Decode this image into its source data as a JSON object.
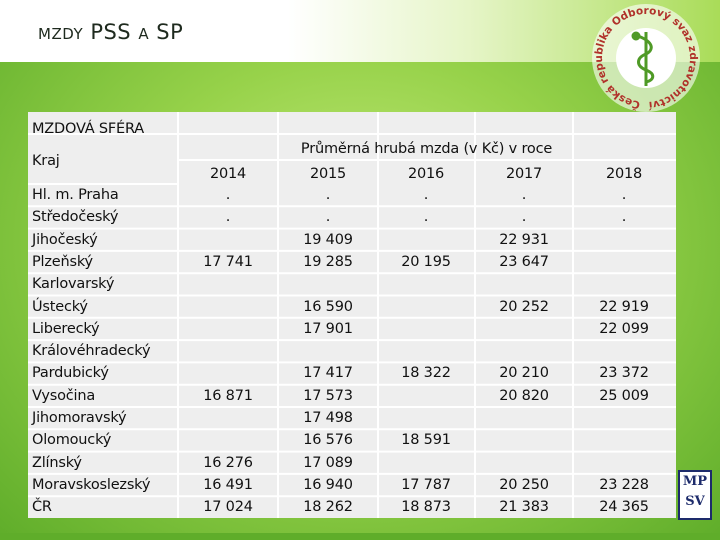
{
  "title": {
    "part1": "MZDY",
    "part2": "PSS",
    "part3": "A",
    "part4": "SP"
  },
  "logo": {
    "text": "Česká republika Odborový svaz zdravotnictví a sociální péče"
  },
  "mpsv": {
    "line1": "MP",
    "line2": "SV"
  },
  "table": {
    "section_label": "MZDOVÁ SFÉRA",
    "region_header": "Kraj",
    "group_header": "Průměrná hrubá mzda (v Kč) v roce",
    "years": [
      "2014",
      "2015",
      "2016",
      "2017",
      "2018"
    ],
    "rows": [
      {
        "region": "Hl. m. Praha",
        "values": [
          ".",
          ".",
          ".",
          ".",
          "."
        ]
      },
      {
        "region": "Středočeský",
        "values": [
          ".",
          ".",
          ".",
          ".",
          "."
        ]
      },
      {
        "region": "Jihočeský",
        "values": [
          "",
          "19 409",
          "",
          "22 931",
          ""
        ]
      },
      {
        "region": "Plzeňský",
        "values": [
          "17 741",
          "19 285",
          "20 195",
          "23 647",
          ""
        ]
      },
      {
        "region": "Karlovarský",
        "values": [
          "",
          "",
          "",
          "",
          ""
        ]
      },
      {
        "region": "Ústecký",
        "values": [
          "",
          "16 590",
          "",
          "20 252",
          "22 919"
        ]
      },
      {
        "region": "Liberecký",
        "values": [
          "",
          "17 901",
          "",
          "",
          "22 099"
        ]
      },
      {
        "region": "Královéhradecký",
        "values": [
          "",
          "",
          "",
          "",
          ""
        ]
      },
      {
        "region": "Pardubický",
        "values": [
          "",
          "17 417",
          "18 322",
          "20 210",
          "23 372"
        ]
      },
      {
        "region": "Vysočina",
        "values": [
          "16 871",
          "17 573",
          "",
          "20 820",
          "25 009"
        ]
      },
      {
        "region": "Jihomoravský",
        "values": [
          "",
          "17 498",
          "",
          "",
          ""
        ]
      },
      {
        "region": "Olomoucký",
        "values": [
          "",
          "16 576",
          "18 591",
          "",
          ""
        ]
      },
      {
        "region": "Zlínský",
        "values": [
          "16 276",
          "17 089",
          "",
          "",
          ""
        ]
      },
      {
        "region": "Moravskoslezský",
        "values": [
          "16 491",
          "16 940",
          "17 787",
          "20 250",
          "23 228"
        ]
      },
      {
        "region": "ČR",
        "values": [
          "17 024",
          "18 262",
          "18 873",
          "21 383",
          "24 365"
        ]
      }
    ]
  },
  "colors": {
    "green_dark": "#5fad2a",
    "green_light": "#c4ea7c",
    "panel": "#eeeeee",
    "logo_red": "#b0312a"
  }
}
